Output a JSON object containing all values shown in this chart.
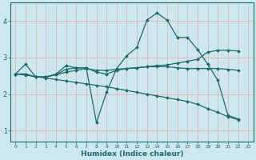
{
  "xlabel": "Humidex (Indice chaleur)",
  "bg_color": "#cce8ee",
  "grid_color": "#e8b0b0",
  "line_color": "#1a6b6b",
  "xlim": [
    -0.5,
    23.5
  ],
  "ylim": [
    0.7,
    4.5
  ],
  "xticks": [
    0,
    1,
    2,
    3,
    4,
    5,
    6,
    7,
    8,
    9,
    10,
    11,
    12,
    13,
    14,
    15,
    16,
    17,
    18,
    19,
    20,
    21,
    22,
    23
  ],
  "yticks": [
    1,
    2,
    3,
    4
  ],
  "series": [
    {
      "x": [
        0,
        1,
        2,
        3,
        4,
        5,
        6,
        7,
        8,
        9,
        10,
        11,
        12,
        13,
        14,
        15,
        16,
        17,
        18,
        19,
        20,
        21,
        22
      ],
      "y": [
        2.55,
        2.82,
        2.47,
        2.47,
        2.55,
        2.78,
        2.72,
        2.72,
        1.22,
        2.05,
        2.7,
        3.05,
        3.28,
        4.03,
        4.22,
        4.02,
        3.55,
        3.55,
        3.22,
        2.82,
        2.38,
        1.42,
        1.32
      ]
    },
    {
      "x": [
        0,
        1,
        2,
        3,
        4,
        5,
        6,
        7,
        8,
        9,
        10,
        11,
        12,
        13,
        14,
        15,
        16,
        17,
        18,
        19,
        20,
        21,
        22
      ],
      "y": [
        2.55,
        2.55,
        2.47,
        2.47,
        2.53,
        2.6,
        2.65,
        2.7,
        2.65,
        2.65,
        2.68,
        2.7,
        2.72,
        2.75,
        2.78,
        2.8,
        2.85,
        2.9,
        2.95,
        3.15,
        3.2,
        3.2,
        3.18
      ]
    },
    {
      "x": [
        0,
        1,
        2,
        3,
        4,
        5,
        6,
        7,
        8,
        9,
        10,
        11,
        12,
        13,
        14,
        15,
        16,
        17,
        18,
        19,
        20,
        21,
        22
      ],
      "y": [
        2.55,
        2.52,
        2.48,
        2.44,
        2.4,
        2.36,
        2.32,
        2.28,
        2.24,
        2.2,
        2.15,
        2.1,
        2.05,
        2.0,
        1.95,
        1.9,
        1.85,
        1.8,
        1.72,
        1.6,
        1.5,
        1.38,
        1.3
      ]
    },
    {
      "x": [
        0,
        1,
        2,
        3,
        4,
        5,
        6,
        7,
        8,
        9,
        10,
        11,
        12,
        13,
        14,
        15,
        16,
        17,
        18,
        19,
        20,
        21,
        22
      ],
      "y": [
        2.55,
        2.55,
        2.47,
        2.47,
        2.53,
        2.68,
        2.72,
        2.72,
        2.6,
        2.55,
        2.65,
        2.7,
        2.72,
        2.75,
        2.75,
        2.75,
        2.72,
        2.7,
        2.7,
        2.7,
        2.7,
        2.68,
        2.65
      ]
    }
  ]
}
